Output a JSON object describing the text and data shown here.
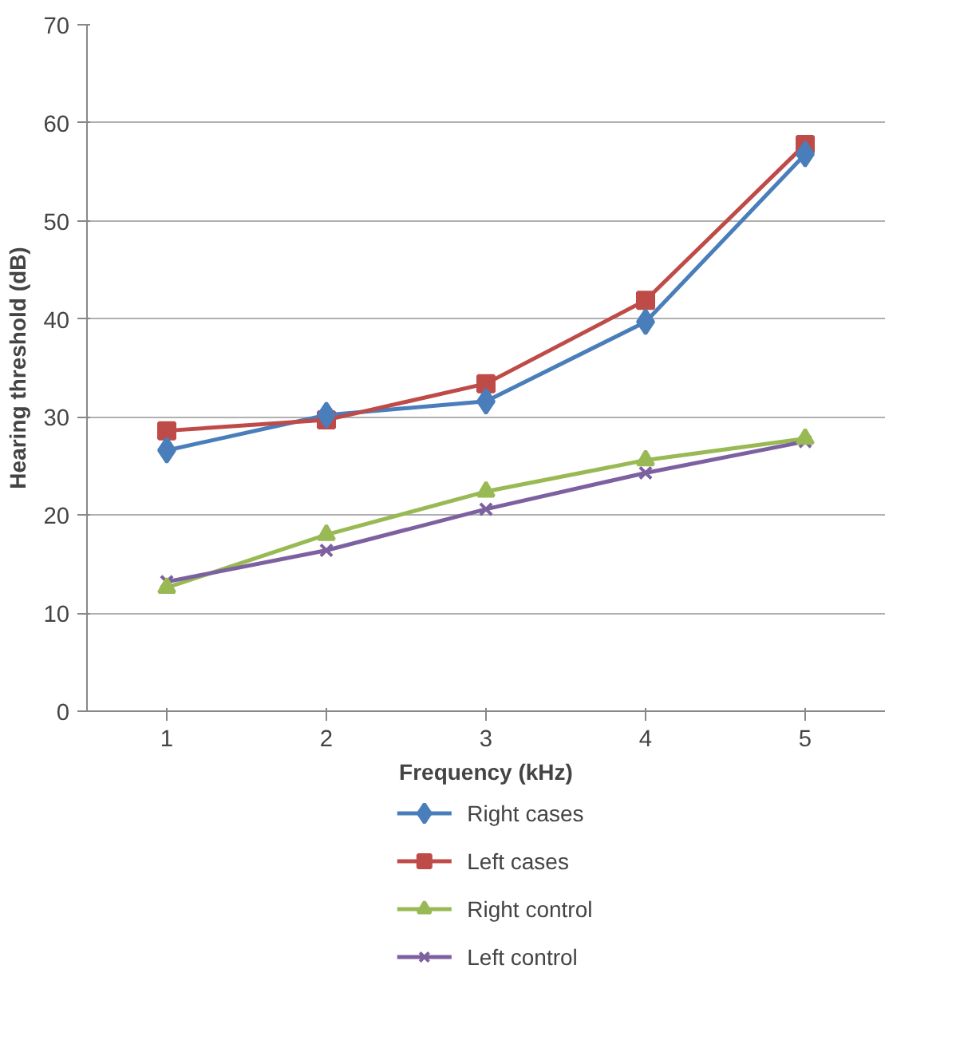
{
  "chart_data": {
    "type": "line",
    "xlabel": "Frequency (kHz)",
    "ylabel": "Hearing threshold (dB)",
    "x": [
      1,
      2,
      3,
      4,
      5
    ],
    "xlim": [
      0.5,
      5.5
    ],
    "xticks": [
      1,
      2,
      3,
      4,
      5
    ],
    "ylim": [
      0,
      70
    ],
    "yticks": [
      0,
      10,
      20,
      30,
      40,
      50,
      60,
      70
    ],
    "grid": "y",
    "legend": "bottom",
    "line_style": "solid",
    "series": [
      {
        "name": "Right cases",
        "color": "#4a7ebb",
        "marker": "diamond",
        "values": [
          26.6,
          30.2,
          31.6,
          39.7,
          56.8
        ]
      },
      {
        "name": "Left cases",
        "color": "#be4b48",
        "marker": "square",
        "values": [
          28.6,
          29.7,
          33.4,
          41.9,
          57.8
        ]
      },
      {
        "name": "Right control",
        "color": "#98b954",
        "marker": "triangle",
        "values": [
          12.6,
          18.0,
          22.4,
          25.6,
          27.8
        ]
      },
      {
        "name": "Left control",
        "color": "#7d60a0",
        "marker": "cross",
        "values": [
          13.2,
          16.4,
          20.6,
          24.3,
          27.5
        ]
      }
    ]
  }
}
